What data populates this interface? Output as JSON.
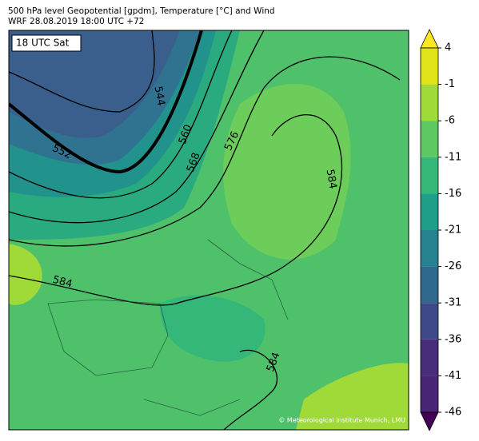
{
  "header": {
    "title": "500 hPa level Geopotential [gpdm], Temperature [°C] and Wind",
    "subtitle": "WRF 28.08.2019 18:00 UTC +72"
  },
  "map": {
    "time_label": "18 UTC Sat",
    "contour_labels": [
      "544",
      "552",
      "560",
      "568",
      "576",
      "584",
      "584",
      "584"
    ],
    "credit": "© Meteorological Institute Munich, LMU"
  },
  "colorbar": {
    "ticks": [
      4,
      -1,
      -6,
      -11,
      -16,
      -21,
      -26,
      -31,
      -36,
      -41,
      -46
    ],
    "colors": [
      "#fde725",
      "#dfe318",
      "#a0da39",
      "#5ec962",
      "#35b779",
      "#1f9e89",
      "#26828e",
      "#31688e",
      "#3e4989",
      "#472d7b",
      "#482576",
      "#440154"
    ]
  }
}
